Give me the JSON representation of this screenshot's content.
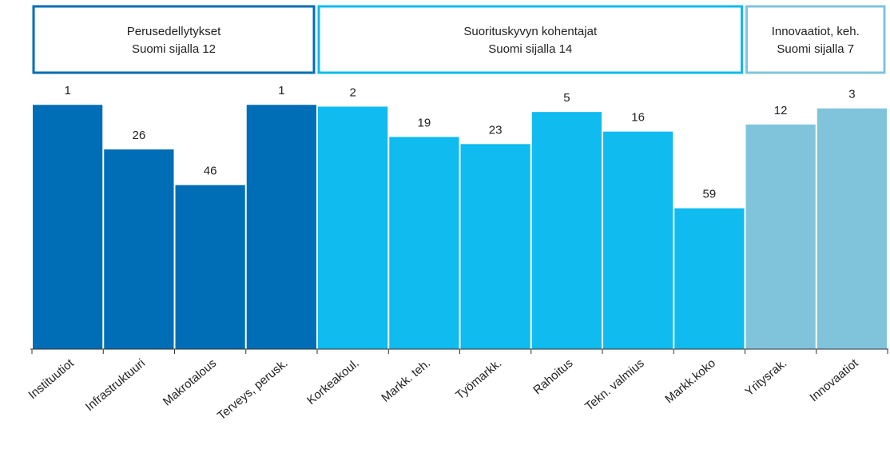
{
  "chart_data": {
    "type": "bar",
    "ylim": [
      138,
      0
    ],
    "groups": [
      {
        "name": "Perusedellytykset",
        "subtitle": "Suomi sijalla 12",
        "color": "#006eb6",
        "categories": [
          "Instituutiot",
          "Infrastruktuuri",
          "Makrotalous",
          "Terveys, perusk."
        ],
        "values": [
          1,
          26,
          46,
          1
        ]
      },
      {
        "name": "Suorituskyvyn kohentajat",
        "subtitle": "Suomi sijalla 14",
        "color": "#0fbbef",
        "categories": [
          "Korkeakoul.",
          "Markk. teh.",
          "Työmarkk.",
          "Rahoitus",
          "Tekn. valmius",
          "Markk.koko"
        ],
        "values": [
          2,
          19,
          23,
          5,
          16,
          59
        ]
      },
      {
        "name": "Innovaatiot, keh.",
        "subtitle": "Suomi sijalla 7",
        "color": "#80c4dc",
        "categories": [
          "Yritysrak.",
          "Innovaatiot"
        ],
        "values": [
          12,
          3
        ]
      }
    ]
  }
}
